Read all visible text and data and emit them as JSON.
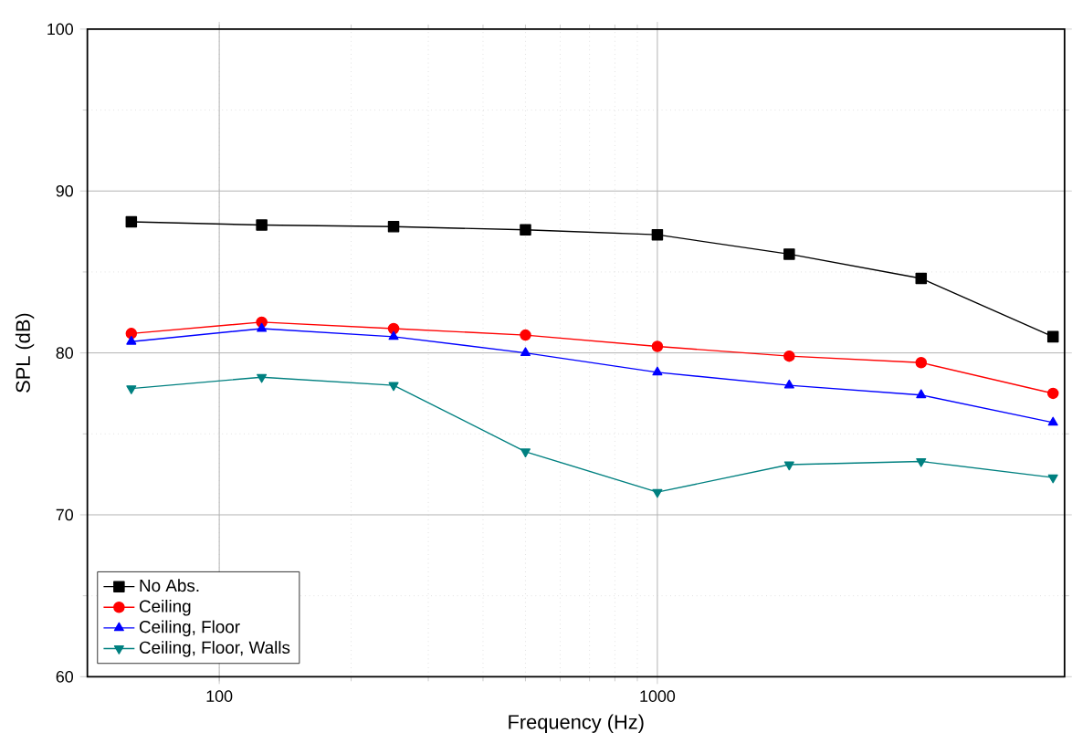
{
  "chart_data": {
    "type": "line",
    "xlabel": "Frequency (Hz)",
    "ylabel": "SPL (dB)",
    "log": "x",
    "x": [
      63,
      125,
      250,
      500,
      1000,
      2000,
      4000,
      8000
    ],
    "xlim": [
      50,
      8500
    ],
    "xticks": [
      100,
      1000
    ],
    "ylim": [
      60,
      100
    ],
    "yticks": [
      60,
      70,
      80,
      90,
      100
    ],
    "grid": true,
    "legend": "bottom left",
    "line_style": "solid",
    "series": [
      {
        "name": "No Abs.",
        "color": "#000000",
        "marker": "square",
        "values": [
          88.1,
          87.9,
          87.8,
          87.6,
          87.3,
          86.1,
          84.6,
          81.0
        ]
      },
      {
        "name": "Ceiling",
        "color": "#ff0000",
        "marker": "circle",
        "values": [
          81.2,
          81.9,
          81.5,
          81.1,
          80.4,
          79.8,
          79.4,
          77.5
        ]
      },
      {
        "name": "Ceiling, Floor",
        "color": "#0000ff",
        "marker": "triangle",
        "values": [
          80.7,
          81.5,
          81.0,
          80.0,
          78.8,
          78.0,
          77.4,
          75.7
        ]
      },
      {
        "name": "Ceiling, Floor, Walls",
        "color": "#008080",
        "marker": "triangle down",
        "values": [
          77.8,
          78.5,
          78.0,
          73.9,
          71.4,
          73.1,
          73.3,
          72.3
        ]
      }
    ]
  }
}
